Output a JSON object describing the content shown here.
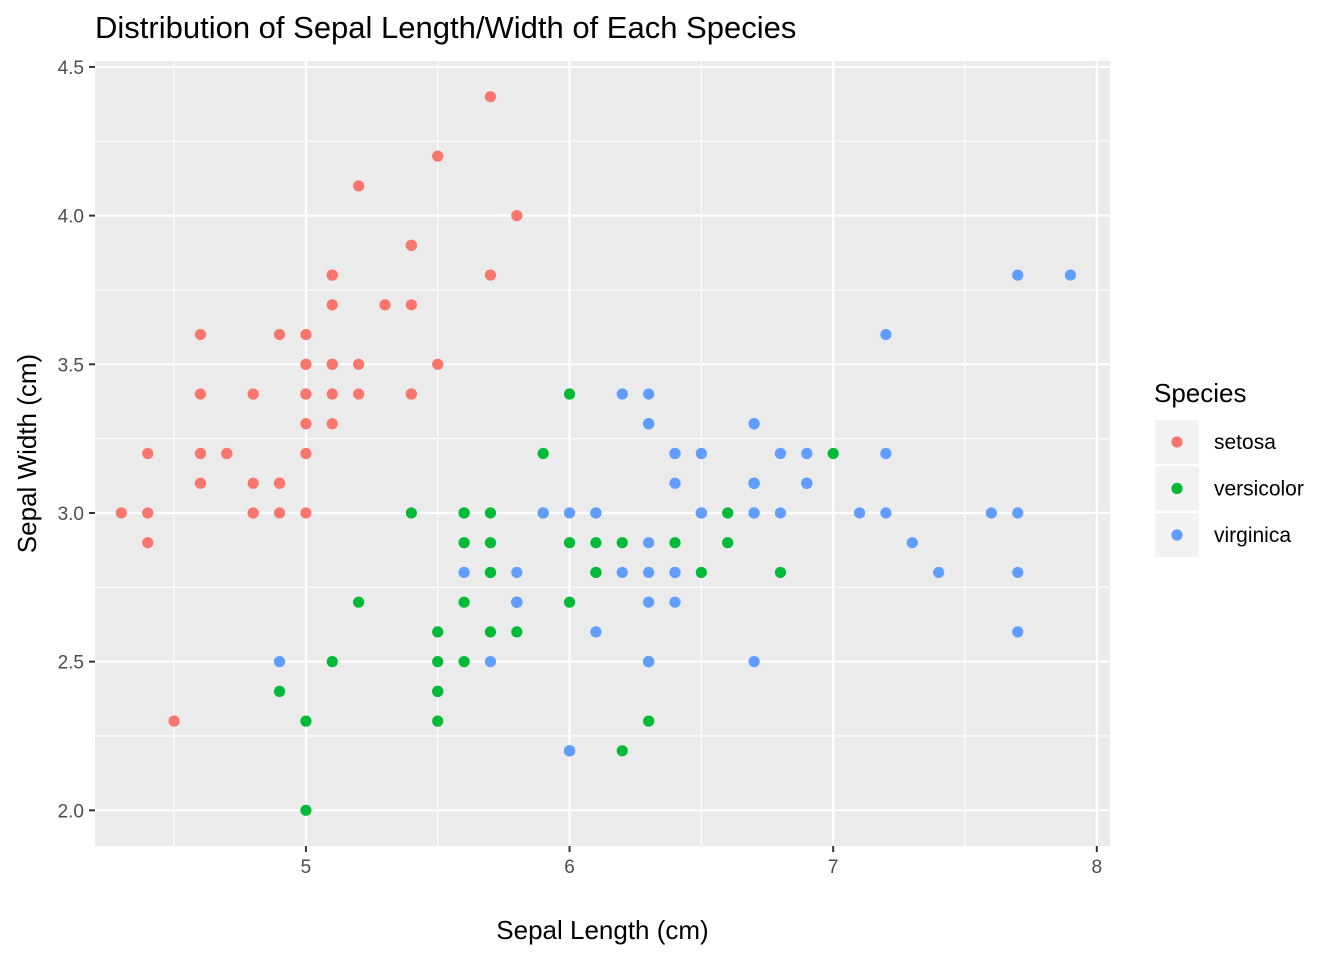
{
  "chart_data": {
    "type": "scatter",
    "title": "Distribution of Sepal Length/Width of Each Species",
    "xlabel": "Sepal Length (cm)",
    "ylabel": "Sepal Width (cm)",
    "xlim": [
      4.2,
      8.05
    ],
    "ylim": [
      1.88,
      4.52
    ],
    "x_ticks": [
      5,
      6,
      7,
      8
    ],
    "y_ticks": [
      2.0,
      2.5,
      3.0,
      3.5,
      4.0,
      4.5
    ],
    "x_tick_labels": [
      "5",
      "6",
      "7",
      "8"
    ],
    "y_tick_labels": [
      "2.0",
      "2.5",
      "3.0",
      "3.5",
      "4.0",
      "4.5"
    ],
    "grid": true,
    "legend_position": "right",
    "legend": {
      "title": "Species",
      "entries": [
        "setosa",
        "versicolor",
        "virginica"
      ]
    },
    "series": [
      {
        "name": "setosa",
        "color": "#F8766D",
        "points": [
          [
            5.1,
            3.5
          ],
          [
            4.9,
            3.0
          ],
          [
            4.7,
            3.2
          ],
          [
            4.6,
            3.1
          ],
          [
            5.0,
            3.6
          ],
          [
            5.4,
            3.9
          ],
          [
            4.6,
            3.4
          ],
          [
            5.0,
            3.4
          ],
          [
            4.4,
            2.9
          ],
          [
            4.9,
            3.1
          ],
          [
            5.4,
            3.7
          ],
          [
            4.8,
            3.4
          ],
          [
            4.8,
            3.0
          ],
          [
            4.3,
            3.0
          ],
          [
            5.8,
            4.0
          ],
          [
            5.7,
            4.4
          ],
          [
            5.4,
            3.9
          ],
          [
            5.1,
            3.5
          ],
          [
            5.7,
            3.8
          ],
          [
            5.1,
            3.8
          ],
          [
            5.4,
            3.4
          ],
          [
            5.1,
            3.7
          ],
          [
            4.6,
            3.6
          ],
          [
            5.1,
            3.3
          ],
          [
            4.8,
            3.4
          ],
          [
            5.0,
            3.0
          ],
          [
            5.0,
            3.4
          ],
          [
            5.2,
            3.5
          ],
          [
            5.2,
            3.4
          ],
          [
            4.7,
            3.2
          ],
          [
            4.8,
            3.1
          ],
          [
            5.4,
            3.4
          ],
          [
            5.2,
            4.1
          ],
          [
            5.5,
            4.2
          ],
          [
            4.9,
            3.1
          ],
          [
            5.0,
            3.2
          ],
          [
            5.5,
            3.5
          ],
          [
            4.9,
            3.6
          ],
          [
            4.4,
            3.0
          ],
          [
            5.1,
            3.4
          ],
          [
            5.0,
            3.5
          ],
          [
            4.5,
            2.3
          ],
          [
            4.4,
            3.2
          ],
          [
            5.0,
            3.5
          ],
          [
            5.1,
            3.8
          ],
          [
            4.8,
            3.0
          ],
          [
            5.1,
            3.8
          ],
          [
            4.6,
            3.2
          ],
          [
            5.3,
            3.7
          ],
          [
            5.0,
            3.3
          ]
        ]
      },
      {
        "name": "versicolor",
        "color": "#00BA38",
        "points": [
          [
            7.0,
            3.2
          ],
          [
            6.4,
            3.2
          ],
          [
            6.9,
            3.1
          ],
          [
            5.5,
            2.3
          ],
          [
            6.5,
            2.8
          ],
          [
            5.7,
            2.8
          ],
          [
            6.3,
            3.3
          ],
          [
            4.9,
            2.4
          ],
          [
            6.6,
            2.9
          ],
          [
            5.2,
            2.7
          ],
          [
            5.0,
            2.0
          ],
          [
            5.9,
            3.0
          ],
          [
            6.0,
            2.2
          ],
          [
            6.1,
            2.9
          ],
          [
            5.6,
            2.9
          ],
          [
            6.7,
            3.1
          ],
          [
            5.6,
            3.0
          ],
          [
            5.8,
            2.7
          ],
          [
            6.2,
            2.2
          ],
          [
            5.6,
            2.5
          ],
          [
            5.9,
            3.2
          ],
          [
            6.1,
            2.8
          ],
          [
            6.3,
            2.5
          ],
          [
            6.1,
            2.8
          ],
          [
            6.4,
            2.9
          ],
          [
            6.6,
            3.0
          ],
          [
            6.8,
            2.8
          ],
          [
            6.7,
            3.0
          ],
          [
            6.0,
            2.9
          ],
          [
            5.7,
            2.6
          ],
          [
            5.5,
            2.4
          ],
          [
            5.5,
            2.4
          ],
          [
            5.8,
            2.7
          ],
          [
            6.0,
            2.7
          ],
          [
            5.4,
            3.0
          ],
          [
            6.0,
            3.4
          ],
          [
            6.7,
            3.1
          ],
          [
            6.3,
            2.3
          ],
          [
            5.6,
            3.0
          ],
          [
            5.5,
            2.5
          ],
          [
            5.5,
            2.6
          ],
          [
            6.1,
            3.0
          ],
          [
            5.8,
            2.6
          ],
          [
            5.0,
            2.3
          ],
          [
            5.6,
            2.7
          ],
          [
            5.7,
            3.0
          ],
          [
            5.7,
            2.9
          ],
          [
            6.2,
            2.9
          ],
          [
            5.1,
            2.5
          ],
          [
            5.7,
            2.8
          ]
        ]
      },
      {
        "name": "virginica",
        "color": "#619CFF",
        "points": [
          [
            6.3,
            3.3
          ],
          [
            5.8,
            2.7
          ],
          [
            7.1,
            3.0
          ],
          [
            6.3,
            2.9
          ],
          [
            6.5,
            3.0
          ],
          [
            7.6,
            3.0
          ],
          [
            4.9,
            2.5
          ],
          [
            7.3,
            2.9
          ],
          [
            6.7,
            2.5
          ],
          [
            7.2,
            3.6
          ],
          [
            6.5,
            3.2
          ],
          [
            6.4,
            2.7
          ],
          [
            6.8,
            3.0
          ],
          [
            5.7,
            2.5
          ],
          [
            5.8,
            2.8
          ],
          [
            6.4,
            3.2
          ],
          [
            6.5,
            3.0
          ],
          [
            7.7,
            3.8
          ],
          [
            7.7,
            2.6
          ],
          [
            6.0,
            2.2
          ],
          [
            6.9,
            3.2
          ],
          [
            5.6,
            2.8
          ],
          [
            7.7,
            2.8
          ],
          [
            6.3,
            2.7
          ],
          [
            6.7,
            3.3
          ],
          [
            7.2,
            3.2
          ],
          [
            6.2,
            2.8
          ],
          [
            6.1,
            3.0
          ],
          [
            6.4,
            2.8
          ],
          [
            7.2,
            3.0
          ],
          [
            7.4,
            2.8
          ],
          [
            7.9,
            3.8
          ],
          [
            6.4,
            2.8
          ],
          [
            6.3,
            2.8
          ],
          [
            6.1,
            2.6
          ],
          [
            7.7,
            3.0
          ],
          [
            6.3,
            3.4
          ],
          [
            6.4,
            3.1
          ],
          [
            6.0,
            3.0
          ],
          [
            6.9,
            3.1
          ],
          [
            6.7,
            3.1
          ],
          [
            6.9,
            3.1
          ],
          [
            5.8,
            2.7
          ],
          [
            6.8,
            3.2
          ],
          [
            6.7,
            3.3
          ],
          [
            6.7,
            3.0
          ],
          [
            6.3,
            2.5
          ],
          [
            6.5,
            3.0
          ],
          [
            6.2,
            3.4
          ],
          [
            5.9,
            3.0
          ]
        ]
      }
    ]
  }
}
